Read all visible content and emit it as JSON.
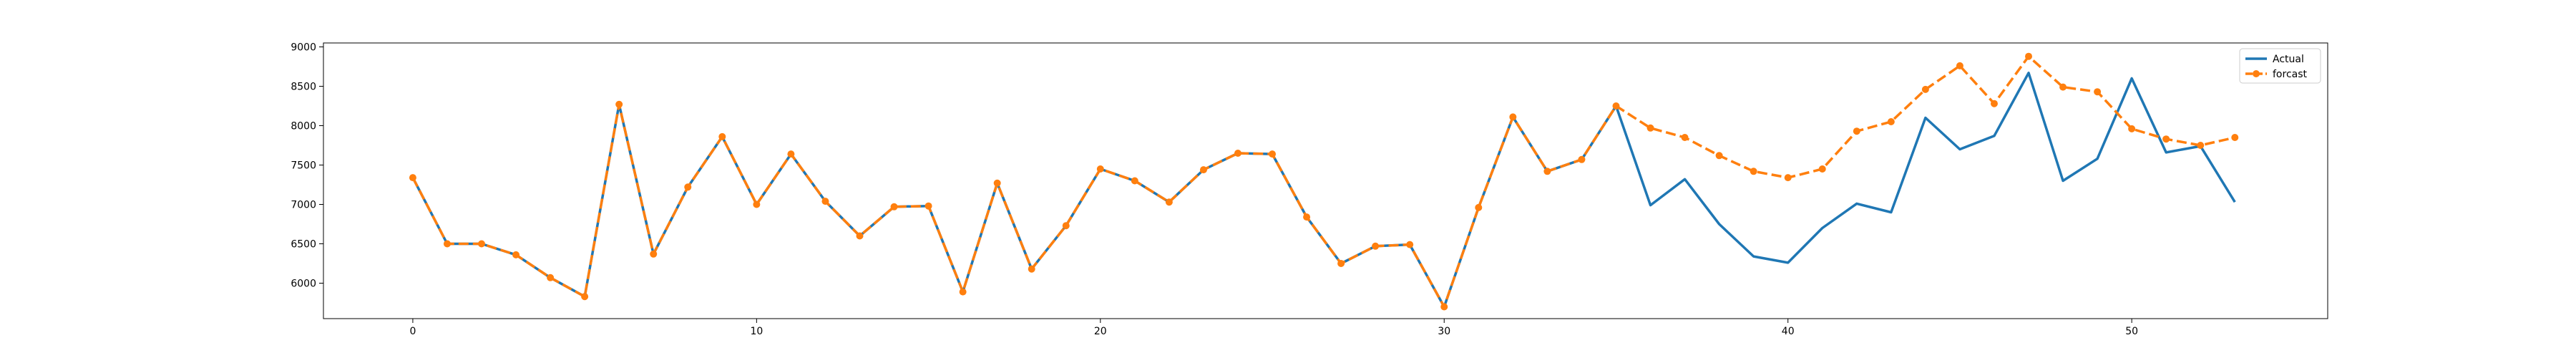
{
  "chart_data": {
    "type": "line",
    "title": "",
    "xlabel": "",
    "ylabel": "",
    "xlim": [
      -2.6,
      55.7
    ],
    "ylim": [
      5550,
      9050
    ],
    "xticks": [
      0,
      10,
      20,
      30,
      40,
      50
    ],
    "yticks": [
      6000,
      6500,
      7000,
      7500,
      8000,
      8500,
      9000
    ],
    "grid": false,
    "legend_position": "top-right",
    "series": [
      {
        "name": "Actual",
        "color": "#1f77b4",
        "style": "solid",
        "marker": "none",
        "x": [
          0,
          1,
          2,
          3,
          4,
          5,
          6,
          7,
          8,
          9,
          10,
          11,
          12,
          13,
          14,
          15,
          16,
          17,
          18,
          19,
          20,
          21,
          22,
          23,
          24,
          25,
          26,
          27,
          28,
          29,
          30,
          31,
          32,
          33,
          34,
          35,
          36,
          37,
          38,
          39,
          40,
          41,
          42,
          43,
          44,
          45,
          46,
          47,
          48,
          49,
          50,
          51,
          52,
          53
        ],
        "values": [
          7340,
          6500,
          6500,
          6360,
          6070,
          5830,
          8270,
          6370,
          7220,
          7860,
          7000,
          7640,
          7040,
          6600,
          6970,
          6980,
          5890,
          7270,
          6180,
          6730,
          7450,
          7300,
          7030,
          7440,
          7650,
          7640,
          6840,
          6250,
          6470,
          6490,
          5700,
          6960,
          8110,
          7420,
          7570,
          8250,
          6990,
          7320,
          6750,
          6340,
          6260,
          6700,
          7010,
          6900,
          8100,
          7700,
          7870,
          8670,
          7300,
          7580,
          8600,
          7660,
          7740,
          7030
        ]
      },
      {
        "name": "forcast",
        "color": "#ff7f0e",
        "style": "dashed",
        "marker": "circle",
        "x": [
          0,
          1,
          2,
          3,
          4,
          5,
          6,
          7,
          8,
          9,
          10,
          11,
          12,
          13,
          14,
          15,
          16,
          17,
          18,
          19,
          20,
          21,
          22,
          23,
          24,
          25,
          26,
          27,
          28,
          29,
          30,
          31,
          32,
          33,
          34,
          35,
          36,
          37,
          38,
          39,
          40,
          41,
          42,
          43,
          44,
          45,
          46,
          47,
          48,
          49,
          50,
          51,
          52,
          53
        ],
        "values": [
          7340,
          6500,
          6500,
          6360,
          6070,
          5830,
          8270,
          6370,
          7220,
          7860,
          7000,
          7640,
          7040,
          6600,
          6970,
          6980,
          5890,
          7270,
          6180,
          6730,
          7450,
          7300,
          7030,
          7440,
          7650,
          7640,
          6840,
          6250,
          6470,
          6490,
          5700,
          6960,
          8110,
          7420,
          7570,
          8250,
          7970,
          7850,
          7620,
          7420,
          7340,
          7450,
          7930,
          8050,
          8460,
          8760,
          8280,
          8880,
          8490,
          8430,
          7960,
          7830,
          7750,
          7850
        ]
      }
    ]
  }
}
